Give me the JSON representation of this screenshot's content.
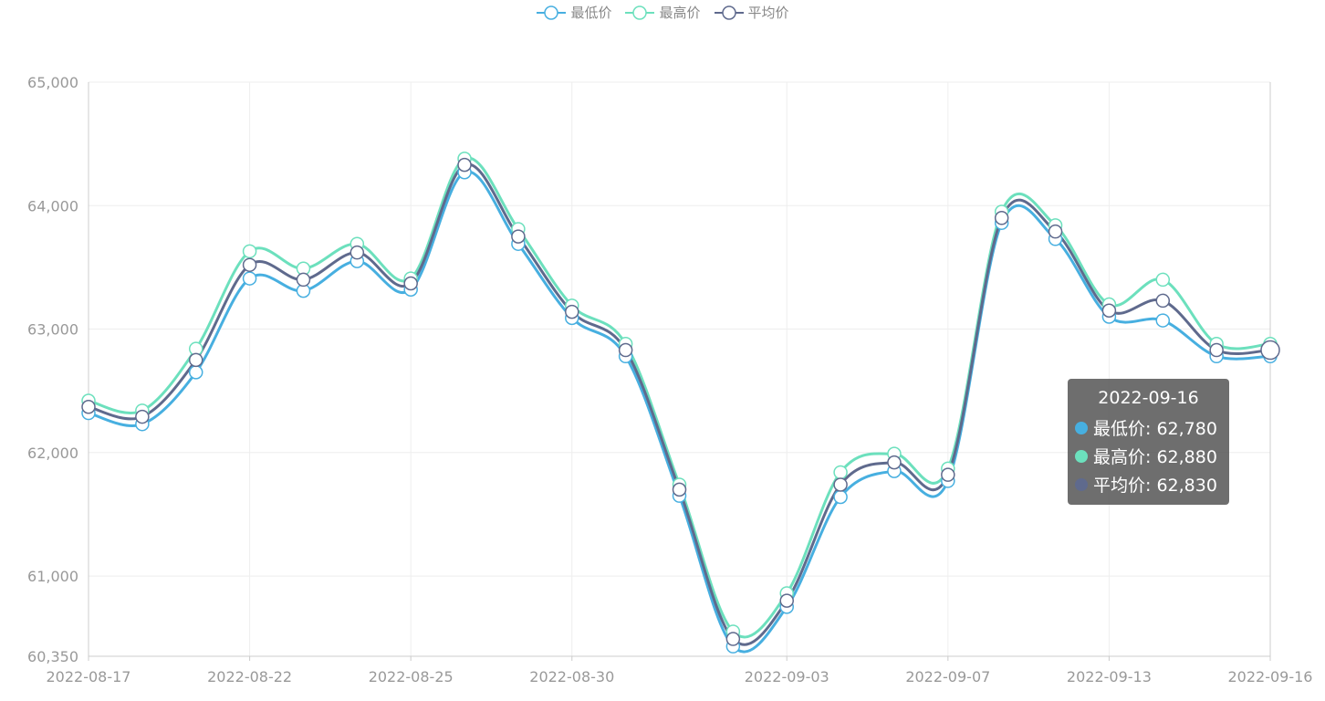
{
  "legend": {
    "items": [
      {
        "label": "最低价",
        "color": "#47afe0"
      },
      {
        "label": "最高价",
        "color": "#6ce0bd"
      },
      {
        "label": "平均价",
        "color": "#5f6a8d"
      }
    ]
  },
  "tooltip": {
    "title": "2022-09-16",
    "rows": [
      {
        "label": "最低价: 62,780",
        "color": "#47afe0"
      },
      {
        "label": "最高价: 62,880",
        "color": "#6ce0bd"
      },
      {
        "label": "平均价: 62,830",
        "color": "#5f6a8d"
      }
    ]
  },
  "chart_data": {
    "type": "line",
    "title": "",
    "xlabel": "",
    "ylabel": "",
    "ylim": [
      60350,
      65000
    ],
    "yticks": [
      60350,
      61000,
      62000,
      63000,
      64000,
      65000
    ],
    "ytick_labels": [
      "60,350",
      "61,000",
      "62,000",
      "63,000",
      "64,000",
      "65,000"
    ],
    "x": [
      "2022-08-17",
      "2022-08-18",
      "2022-08-19",
      "2022-08-22",
      "2022-08-23",
      "2022-08-24",
      "2022-08-25",
      "2022-08-26",
      "2022-08-29",
      "2022-08-30",
      "2022-08-31",
      "2022-09-01",
      "2022-09-02",
      "2022-09-03",
      "2022-09-05",
      "2022-09-06",
      "2022-09-07",
      "2022-09-08",
      "2022-09-09",
      "2022-09-13",
      "2022-09-14",
      "2022-09-15",
      "2022-09-16"
    ],
    "x_tick_labels": [
      "2022-08-17",
      "2022-08-22",
      "2022-08-25",
      "2022-08-30",
      "2022-09-03",
      "2022-09-07",
      "2022-09-13",
      "2022-09-16"
    ],
    "grid": true,
    "legend_position": "top-center",
    "series": [
      {
        "name": "最低价",
        "color": "#47afe0",
        "values": [
          62320,
          62230,
          62650,
          63410,
          63310,
          63550,
          63320,
          64270,
          63690,
          63090,
          62780,
          61650,
          60430,
          60750,
          61640,
          61850,
          61770,
          63860,
          63730,
          63100,
          63070,
          62780,
          62780
        ]
      },
      {
        "name": "最高价",
        "color": "#6ce0bd",
        "values": [
          62420,
          62340,
          62840,
          63630,
          63490,
          63690,
          63410,
          64380,
          63810,
          63190,
          62880,
          61740,
          60550,
          60860,
          61840,
          61990,
          61870,
          63950,
          63840,
          63200,
          63400,
          62880,
          62880
        ]
      },
      {
        "name": "平均价",
        "color": "#5f6a8d",
        "values": [
          62370,
          62290,
          62750,
          63520,
          63400,
          63620,
          63370,
          64330,
          63750,
          63140,
          62830,
          61700,
          60490,
          60800,
          61740,
          61920,
          61820,
          63900,
          63790,
          63150,
          63230,
          62830,
          62830
        ]
      }
    ]
  }
}
